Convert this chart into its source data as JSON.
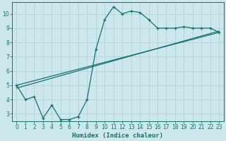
{
  "xlabel": "Humidex (Indice chaleur)",
  "bg_color": "#cce8ec",
  "grid_color": "#aacfd4",
  "line_color": "#1a6e6e",
  "xlim": [
    -0.5,
    23.5
  ],
  "ylim": [
    2.5,
    10.8
  ],
  "yticks": [
    3,
    4,
    5,
    6,
    7,
    8,
    9,
    10
  ],
  "xticks": [
    0,
    1,
    2,
    3,
    4,
    5,
    6,
    7,
    8,
    9,
    10,
    11,
    12,
    13,
    14,
    15,
    16,
    17,
    18,
    19,
    20,
    21,
    22,
    23
  ],
  "line1_x": [
    0,
    1,
    2,
    3,
    4,
    5,
    6,
    7,
    8,
    9,
    10,
    11,
    12,
    13,
    14,
    15,
    16,
    17,
    18,
    19,
    20,
    21,
    22,
    23
  ],
  "line1_y": [
    5.0,
    4.0,
    4.2,
    2.7,
    3.6,
    2.6,
    2.6,
    2.8,
    4.0,
    7.5,
    9.6,
    10.5,
    10.0,
    10.2,
    10.1,
    9.6,
    9.0,
    9.0,
    9.0,
    9.1,
    9.0,
    9.0,
    9.0,
    8.7
  ],
  "line2_x": [
    0,
    23
  ],
  "line2_y": [
    5.0,
    8.7
  ],
  "line3_x": [
    0,
    23
  ],
  "line3_y": [
    4.8,
    8.8
  ],
  "xlabel_fontsize": 6.5,
  "tick_fontsize": 5.5
}
